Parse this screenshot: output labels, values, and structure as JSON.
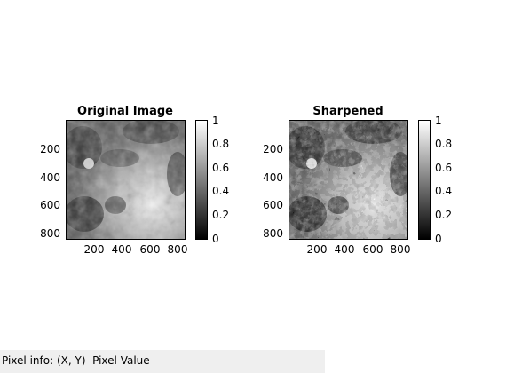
{
  "figures": [
    {
      "title": "Original Image",
      "yticks": [
        "200",
        "400",
        "600",
        "800"
      ],
      "xticks": [
        "200",
        "400",
        "600",
        "800"
      ],
      "colorbar_ticks": [
        "1",
        "0.8",
        "0.6",
        "0.4",
        "0.2",
        "0"
      ]
    },
    {
      "title": "Sharpened",
      "yticks": [
        "200",
        "400",
        "600",
        "800"
      ],
      "xticks": [
        "200",
        "400",
        "600",
        "800"
      ],
      "colorbar_ticks": [
        "1",
        "0.8",
        "0.6",
        "0.4",
        "0.2",
        "0"
      ]
    }
  ],
  "colormap": "gray",
  "status_bar": {
    "label": "Pixel info:",
    "value": "(X, Y)  Pixel Value"
  }
}
